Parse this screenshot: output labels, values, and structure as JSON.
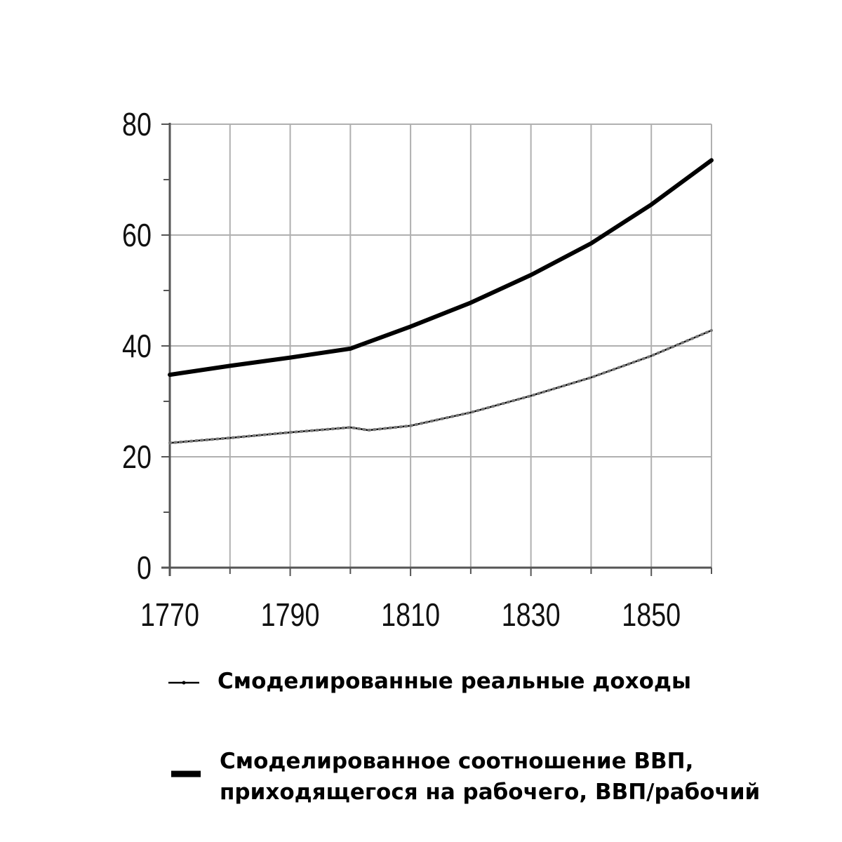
{
  "chart_data": {
    "type": "line",
    "title": "",
    "xlabel": "",
    "ylabel": "",
    "xlim": [
      1770,
      1860
    ],
    "ylim": [
      0,
      80
    ],
    "x_ticks": [
      1770,
      1790,
      1810,
      1830,
      1850
    ],
    "y_ticks": [
      0,
      20,
      40,
      60,
      80
    ],
    "grid": true,
    "legend_position": "bottom",
    "series": [
      {
        "name": "Смоделированные реальные доходы",
        "style": "thin-dotted",
        "color": "#000000",
        "x": [
          1770,
          1780,
          1790,
          1800,
          1803,
          1810,
          1820,
          1830,
          1840,
          1850,
          1860
        ],
        "y": [
          22.5,
          23.4,
          24.4,
          25.3,
          24.8,
          25.6,
          28.0,
          31.0,
          34.3,
          38.2,
          42.8
        ]
      },
      {
        "name": "Смоделированное соотношение ВВП, приходящегося на рабочего, ВВП/рабочий",
        "name_lines": [
          "Смоделированное соотношение ВВП,",
          "приходящегося на рабочего, ВВП/рабочий"
        ],
        "style": "thick",
        "color": "#000000",
        "x": [
          1770,
          1780,
          1790,
          1800,
          1810,
          1820,
          1830,
          1840,
          1850,
          1860
        ],
        "y": [
          34.8,
          36.4,
          37.9,
          39.5,
          43.5,
          47.8,
          52.8,
          58.5,
          65.5,
          73.5
        ]
      }
    ]
  }
}
